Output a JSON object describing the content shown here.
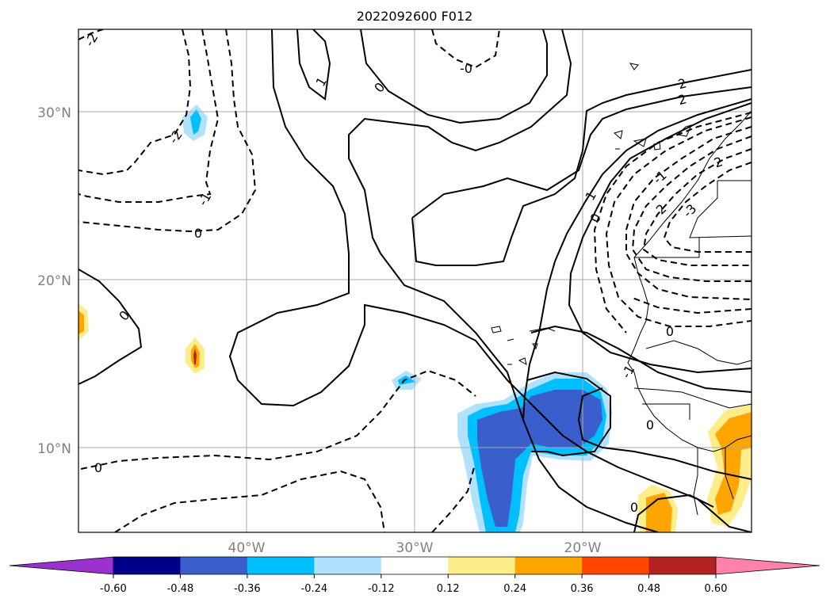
{
  "title": "2022092600 F012",
  "latitude_labels": [
    "30°N",
    "20°N",
    "10°N"
  ],
  "longitude_labels": [
    "40°W",
    "30°W",
    "20°W"
  ],
  "contour_labels": [
    "-2",
    "-2",
    "-1",
    "0",
    "0",
    "1",
    "0",
    "-0",
    "2",
    "2",
    "-1",
    "-2",
    "2",
    "-3",
    "1",
    "0",
    "0",
    "0",
    "0",
    "-1",
    "0"
  ],
  "colorbar": {
    "tick_labels": [
      "-0.60",
      "-0.48",
      "-0.36",
      "-0.24",
      "-0.12",
      "0.12",
      "0.24",
      "0.36",
      "0.48",
      "0.60"
    ],
    "colors": [
      "#9932cc",
      "#00008b",
      "#3a5fcd",
      "#00bfff",
      "#b0e2ff",
      "#ffffff",
      "#ffec8b",
      "#ffa500",
      "#ff4500",
      "#b22222",
      "#ff82ab"
    ]
  },
  "map": {
    "projection": "PlateCarree",
    "gridlines": true,
    "shading": "filled contours of a scalar field",
    "contours": "black lines, dashed for negative values"
  }
}
